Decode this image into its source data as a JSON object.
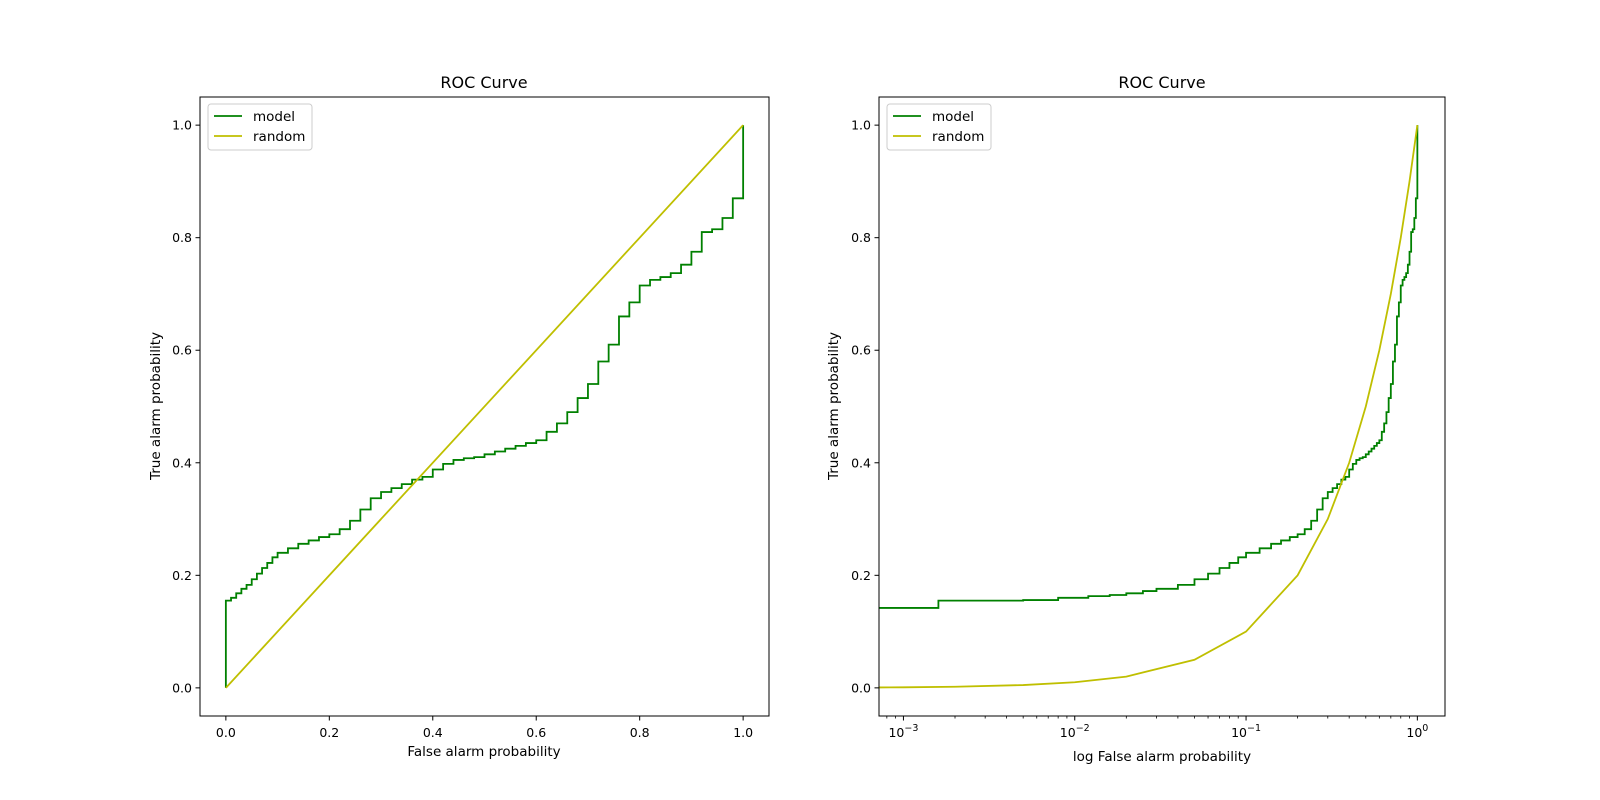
{
  "chart_data": [
    {
      "type": "line",
      "title": "ROC Curve",
      "xlabel": "False alarm probability",
      "ylabel": "True alarm probability",
      "xscale": "linear",
      "xlim": [
        -0.05,
        1.05
      ],
      "ylim": [
        -0.05,
        1.05
      ],
      "xticks": [
        0.0,
        0.2,
        0.4,
        0.6,
        0.8,
        1.0
      ],
      "xtick_labels": [
        "0.0",
        "0.2",
        "0.4",
        "0.6",
        "0.8",
        "1.0"
      ],
      "yticks": [
        0.0,
        0.2,
        0.4,
        0.6,
        0.8,
        1.0
      ],
      "ytick_labels": [
        "0.0",
        "0.2",
        "0.4",
        "0.6",
        "0.8",
        "1.0"
      ],
      "grid": false,
      "legend": "top-left",
      "series": [
        {
          "name": "model",
          "color": "#008000",
          "step": true,
          "points": [
            [
              0,
              0
            ],
            [
              0,
              0.155
            ],
            [
              0.01,
              0.16
            ],
            [
              0.02,
              0.168
            ],
            [
              0.03,
              0.176
            ],
            [
              0.04,
              0.183
            ],
            [
              0.05,
              0.193
            ],
            [
              0.06,
              0.203
            ],
            [
              0.07,
              0.213
            ],
            [
              0.08,
              0.222
            ],
            [
              0.09,
              0.232
            ],
            [
              0.1,
              0.24
            ],
            [
              0.12,
              0.248
            ],
            [
              0.14,
              0.256
            ],
            [
              0.16,
              0.262
            ],
            [
              0.18,
              0.268
            ],
            [
              0.2,
              0.273
            ],
            [
              0.22,
              0.282
            ],
            [
              0.24,
              0.297
            ],
            [
              0.26,
              0.317
            ],
            [
              0.28,
              0.337
            ],
            [
              0.3,
              0.348
            ],
            [
              0.32,
              0.355
            ],
            [
              0.34,
              0.362
            ],
            [
              0.36,
              0.37
            ],
            [
              0.38,
              0.375
            ],
            [
              0.4,
              0.388
            ],
            [
              0.42,
              0.398
            ],
            [
              0.44,
              0.405
            ],
            [
              0.46,
              0.408
            ],
            [
              0.48,
              0.41
            ],
            [
              0.5,
              0.415
            ],
            [
              0.52,
              0.42
            ],
            [
              0.54,
              0.425
            ],
            [
              0.56,
              0.43
            ],
            [
              0.58,
              0.435
            ],
            [
              0.6,
              0.44
            ],
            [
              0.62,
              0.455
            ],
            [
              0.64,
              0.47
            ],
            [
              0.66,
              0.49
            ],
            [
              0.68,
              0.515
            ],
            [
              0.7,
              0.54
            ],
            [
              0.72,
              0.58
            ],
            [
              0.74,
              0.61
            ],
            [
              0.76,
              0.66
            ],
            [
              0.78,
              0.685
            ],
            [
              0.8,
              0.715
            ],
            [
              0.82,
              0.725
            ],
            [
              0.84,
              0.73
            ],
            [
              0.86,
              0.737
            ],
            [
              0.88,
              0.752
            ],
            [
              0.9,
              0.775
            ],
            [
              0.92,
              0.81
            ],
            [
              0.94,
              0.815
            ],
            [
              0.96,
              0.835
            ],
            [
              0.98,
              0.87
            ],
            [
              1.0,
              0.9
            ],
            [
              1.0,
              1.0
            ]
          ]
        },
        {
          "name": "random",
          "color": "#bfbf00",
          "step": false,
          "points": [
            [
              0,
              0
            ],
            [
              1,
              1
            ]
          ]
        }
      ]
    },
    {
      "type": "line",
      "title": "ROC Curve",
      "xlabel": "log False alarm probability",
      "ylabel": "True alarm probability",
      "xscale": "log",
      "xlim": [
        0.00072,
        1.45
      ],
      "ylim": [
        -0.05,
        1.05
      ],
      "xticks": [
        0.001,
        0.01,
        0.1,
        1
      ],
      "xtick_labels": [
        "10",
        "10",
        "10",
        "10"
      ],
      "xtick_exponents": [
        "−3",
        "−2",
        "−1",
        "0"
      ],
      "yticks": [
        0.0,
        0.2,
        0.4,
        0.6,
        0.8,
        1.0
      ],
      "ytick_labels": [
        "0.0",
        "0.2",
        "0.4",
        "0.6",
        "0.8",
        "1.0"
      ],
      "grid": false,
      "legend": "top-left",
      "series": [
        {
          "name": "model",
          "color": "#008000",
          "step": true,
          "points": [
            [
              0.00072,
              0.142
            ],
            [
              0.0016,
              0.142
            ],
            [
              0.0016,
              0.155
            ],
            [
              0.005,
              0.156
            ],
            [
              0.008,
              0.16
            ],
            [
              0.012,
              0.163
            ],
            [
              0.016,
              0.165
            ],
            [
              0.02,
              0.168
            ],
            [
              0.025,
              0.172
            ],
            [
              0.03,
              0.176
            ],
            [
              0.04,
              0.183
            ],
            [
              0.05,
              0.193
            ],
            [
              0.06,
              0.203
            ],
            [
              0.07,
              0.213
            ],
            [
              0.08,
              0.222
            ],
            [
              0.09,
              0.232
            ],
            [
              0.1,
              0.24
            ],
            [
              0.12,
              0.248
            ],
            [
              0.14,
              0.256
            ],
            [
              0.16,
              0.262
            ],
            [
              0.18,
              0.268
            ],
            [
              0.2,
              0.273
            ],
            [
              0.22,
              0.282
            ],
            [
              0.24,
              0.297
            ],
            [
              0.26,
              0.317
            ],
            [
              0.28,
              0.337
            ],
            [
              0.3,
              0.348
            ],
            [
              0.32,
              0.355
            ],
            [
              0.34,
              0.362
            ],
            [
              0.36,
              0.37
            ],
            [
              0.38,
              0.375
            ],
            [
              0.4,
              0.388
            ],
            [
              0.42,
              0.398
            ],
            [
              0.44,
              0.405
            ],
            [
              0.46,
              0.408
            ],
            [
              0.48,
              0.41
            ],
            [
              0.5,
              0.415
            ],
            [
              0.52,
              0.42
            ],
            [
              0.54,
              0.425
            ],
            [
              0.56,
              0.43
            ],
            [
              0.58,
              0.435
            ],
            [
              0.6,
              0.44
            ],
            [
              0.62,
              0.455
            ],
            [
              0.64,
              0.47
            ],
            [
              0.66,
              0.49
            ],
            [
              0.68,
              0.515
            ],
            [
              0.7,
              0.54
            ],
            [
              0.72,
              0.58
            ],
            [
              0.74,
              0.61
            ],
            [
              0.76,
              0.66
            ],
            [
              0.78,
              0.685
            ],
            [
              0.8,
              0.715
            ],
            [
              0.82,
              0.725
            ],
            [
              0.84,
              0.73
            ],
            [
              0.86,
              0.737
            ],
            [
              0.88,
              0.752
            ],
            [
              0.9,
              0.775
            ],
            [
              0.92,
              0.81
            ],
            [
              0.94,
              0.815
            ],
            [
              0.96,
              0.835
            ],
            [
              0.98,
              0.87
            ],
            [
              1.0,
              0.9
            ],
            [
              1.0,
              1.0
            ]
          ]
        },
        {
          "name": "random",
          "color": "#bfbf00",
          "step": false,
          "points": [
            [
              0.00072,
              0.00072
            ],
            [
              0.001,
              0.001
            ],
            [
              0.002,
              0.002
            ],
            [
              0.005,
              0.005
            ],
            [
              0.01,
              0.01
            ],
            [
              0.02,
              0.02
            ],
            [
              0.05,
              0.05
            ],
            [
              0.1,
              0.1
            ],
            [
              0.2,
              0.2
            ],
            [
              0.3,
              0.3
            ],
            [
              0.4,
              0.4
            ],
            [
              0.5,
              0.5
            ],
            [
              0.6,
              0.6
            ],
            [
              0.7,
              0.7
            ],
            [
              0.8,
              0.8
            ],
            [
              0.9,
              0.9
            ],
            [
              1.0,
              1.0
            ]
          ]
        }
      ]
    }
  ]
}
